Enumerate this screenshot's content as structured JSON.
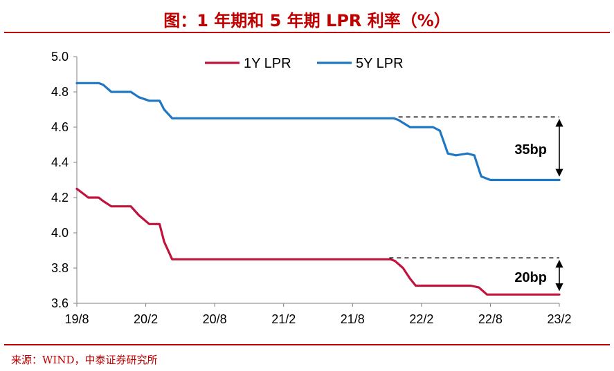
{
  "title": "图：1 年期和 5 年期 LPR 利率（%）",
  "source": "来源：WIND，中泰证券研究所",
  "chart_data": {
    "type": "line",
    "title": "图：1 年期和 5 年期 LPR 利率（%）",
    "xlabel": "",
    "ylabel": "",
    "x_ticks": [
      "19/8",
      "20/2",
      "20/8",
      "21/2",
      "21/8",
      "22/2",
      "22/8",
      "23/2"
    ],
    "x_range_months": [
      0,
      42
    ],
    "ylim": [
      3.6,
      5.0
    ],
    "y_ticks": [
      "3.6",
      "3.8",
      "4.0",
      "4.2",
      "4.4",
      "4.6",
      "4.8",
      "5.0"
    ],
    "grid": false,
    "legend_position": "top",
    "series": [
      {
        "name": "1Y LPR",
        "color": "#c0143c",
        "points": [
          [
            0.0,
            4.25
          ],
          [
            0.6,
            4.22
          ],
          [
            1.0,
            4.2
          ],
          [
            1.9,
            4.2
          ],
          [
            2.3,
            4.18
          ],
          [
            3.0,
            4.15
          ],
          [
            4.7,
            4.15
          ],
          [
            5.4,
            4.1
          ],
          [
            6.3,
            4.05
          ],
          [
            7.2,
            4.05
          ],
          [
            7.6,
            3.95
          ],
          [
            8.3,
            3.85
          ],
          [
            8.8,
            3.85
          ],
          [
            9.3,
            3.85
          ],
          [
            27.3,
            3.85
          ],
          [
            27.7,
            3.84
          ],
          [
            28.4,
            3.8
          ],
          [
            29.0,
            3.74
          ],
          [
            29.5,
            3.7
          ],
          [
            30.3,
            3.7
          ],
          [
            34.3,
            3.7
          ],
          [
            35.0,
            3.69
          ],
          [
            35.7,
            3.65
          ],
          [
            36.3,
            3.65
          ],
          [
            42.0,
            3.65
          ]
        ]
      },
      {
        "name": "5Y LPR",
        "color": "#1f77c4",
        "points": [
          [
            0.0,
            4.85
          ],
          [
            1.9,
            4.85
          ],
          [
            2.3,
            4.84
          ],
          [
            3.0,
            4.8
          ],
          [
            4.7,
            4.8
          ],
          [
            5.4,
            4.77
          ],
          [
            6.3,
            4.75
          ],
          [
            7.2,
            4.75
          ],
          [
            7.6,
            4.7
          ],
          [
            8.3,
            4.65
          ],
          [
            8.8,
            4.65
          ],
          [
            9.3,
            4.65
          ],
          [
            27.6,
            4.65
          ],
          [
            28.0,
            4.64
          ],
          [
            29.0,
            4.6
          ],
          [
            31.0,
            4.6
          ],
          [
            31.6,
            4.58
          ],
          [
            32.3,
            4.45
          ],
          [
            33.0,
            4.44
          ],
          [
            34.0,
            4.45
          ],
          [
            34.6,
            4.44
          ],
          [
            35.2,
            4.32
          ],
          [
            36.0,
            4.3
          ],
          [
            42.0,
            4.3
          ]
        ]
      }
    ],
    "annotations": [
      {
        "text": "35bp",
        "from": 4.3,
        "to": 4.65,
        "dashed_line_start_month": 28.0
      },
      {
        "text": "20bp",
        "from": 3.65,
        "to": 3.85,
        "dashed_line_start_month": 27.2
      }
    ]
  }
}
